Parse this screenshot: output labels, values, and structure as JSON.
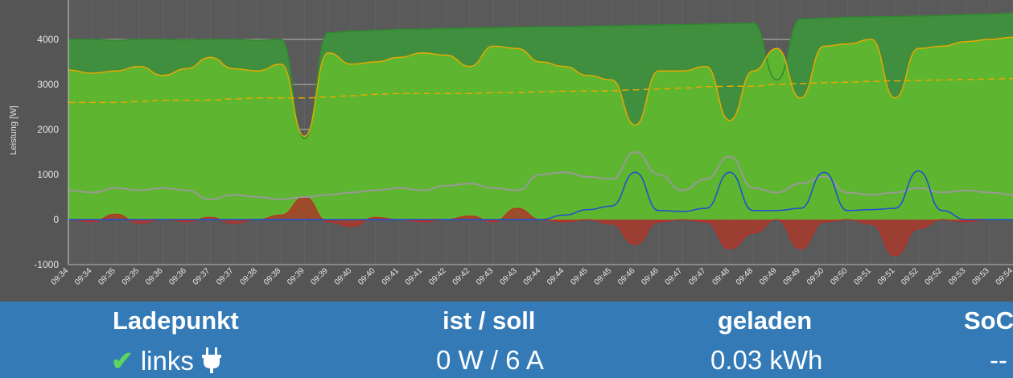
{
  "chart_data": {
    "type": "area",
    "ylabel": "Leistung [W]",
    "ylim": [
      -1000,
      5000
    ],
    "y_ticks": [
      "4000",
      "3000",
      "2000",
      "1000",
      "0",
      "-1000"
    ],
    "y_tick_values": [
      4000,
      3000,
      2000,
      1000,
      0,
      -1000
    ],
    "x_ticks": [
      "09:34",
      "09:34",
      "09:35",
      "09:35",
      "09:36",
      "09:36",
      "09:37",
      "09:37",
      "09:38",
      "09:38",
      "09:39",
      "09:39",
      "09:40",
      "09:40",
      "09:41",
      "09:41",
      "09:42",
      "09:42",
      "09:43",
      "09:43",
      "09:44",
      "09:44",
      "09:45",
      "09:45",
      "09:46",
      "09:46",
      "09:47",
      "09:47",
      "09:48",
      "09:48",
      "09:49",
      "09:49",
      "09:50",
      "09:50",
      "09:51",
      "09:51",
      "09:52",
      "09:52",
      "09:53",
      "09:53",
      "09:54"
    ],
    "grid": true,
    "series": [
      {
        "key": "pv",
        "color": "#2f8a2f",
        "values": [
          4000,
          4000,
          3980,
          4000,
          4000,
          3990,
          4000,
          4000,
          3980,
          4000,
          1800,
          4150,
          4180,
          4200,
          4220,
          4230,
          4240,
          4250,
          4260,
          4270,
          4280,
          4280,
          4290,
          4300,
          4310,
          4320,
          4330,
          4340,
          4350,
          4360,
          3100,
          4450,
          4470,
          4490,
          4500,
          4510,
          4520,
          4530,
          4550,
          4560,
          4580
        ]
      },
      {
        "key": "house",
        "color": "#e8a800",
        "values": [
          3320,
          3250,
          3300,
          3400,
          3200,
          3350,
          3600,
          3350,
          3300,
          3450,
          1850,
          3700,
          3450,
          3500,
          3600,
          3700,
          3650,
          3400,
          3850,
          3800,
          3500,
          3400,
          3200,
          3100,
          2100,
          3300,
          3300,
          3400,
          2200,
          3300,
          3800,
          2700,
          3850,
          3900,
          4000,
          2700,
          3800,
          3850,
          3950,
          4000,
          4050
        ]
      },
      {
        "key": "house_avg",
        "color": "#e8a800",
        "dashed": true,
        "values": [
          2600,
          2600,
          2600,
          2620,
          2650,
          2650,
          2650,
          2680,
          2700,
          2700,
          2700,
          2720,
          2750,
          2780,
          2800,
          2800,
          2800,
          2800,
          2820,
          2820,
          2840,
          2850,
          2850,
          2860,
          2880,
          2900,
          2920,
          2950,
          2960,
          2960,
          3000,
          3020,
          3040,
          3050,
          3070,
          3080,
          3090,
          3100,
          3110,
          3120,
          3130
        ]
      },
      {
        "key": "car",
        "color": "#1a4fd6",
        "values": [
          0,
          0,
          0,
          0,
          0,
          0,
          0,
          0,
          0,
          0,
          0,
          0,
          0,
          0,
          0,
          0,
          0,
          0,
          0,
          0,
          0,
          100,
          220,
          300,
          1050,
          200,
          180,
          250,
          1050,
          200,
          200,
          250,
          1050,
          200,
          220,
          250,
          1080,
          200,
          0,
          0,
          0
        ]
      },
      {
        "key": "battery",
        "color": "#999999",
        "values": [
          650,
          600,
          700,
          650,
          700,
          650,
          450,
          550,
          500,
          450,
          500,
          550,
          600,
          650,
          700,
          650,
          750,
          800,
          700,
          650,
          1000,
          1050,
          950,
          900,
          1500,
          1000,
          650,
          900,
          1400,
          700,
          600,
          800,
          950,
          600,
          550,
          600,
          700,
          600,
          650,
          600,
          550
        ]
      },
      {
        "key": "grid",
        "color": "#cc2222",
        "values": [
          0,
          -50,
          120,
          -80,
          0,
          -50,
          50,
          -80,
          0,
          100,
          500,
          -50,
          -150,
          50,
          0,
          -50,
          0,
          80,
          -50,
          250,
          0,
          -50,
          0,
          -100,
          -550,
          -50,
          0,
          -50,
          -650,
          -300,
          0,
          -650,
          -50,
          0,
          -100,
          -800,
          -200,
          0,
          -50,
          0,
          0
        ]
      }
    ]
  },
  "table": {
    "headers": [
      "Ladepunkt",
      "ist / soll",
      "geladen",
      "SoC"
    ],
    "row": {
      "name": "links",
      "power": "0 W / 6 A",
      "energy": "0.03 kWh",
      "soc": "--"
    },
    "icons": [
      "check-icon",
      "plug-icon"
    ],
    "colors": {
      "background": "#337ab7",
      "check": "#5cd65c"
    }
  }
}
